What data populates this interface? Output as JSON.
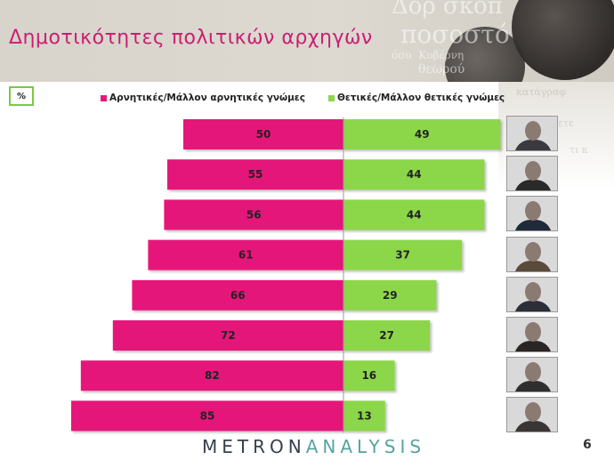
{
  "header": {
    "title": "Δημοτικότητες πολιτικών αρχηγών"
  },
  "unit_label": "%",
  "colors": {
    "negative": "#e5197a",
    "positive": "#8cd64a",
    "title": "#cc1e72"
  },
  "chart_data": {
    "type": "bar",
    "orientation": "horizontal-diverging",
    "series": [
      {
        "name": "Αρνητικές/Μάλλον αρνητικές γνώμες",
        "values": [
          50,
          55,
          56,
          61,
          66,
          72,
          82,
          85
        ]
      },
      {
        "name": "Θετικές/Μάλλον θετικές γνώμες",
        "values": [
          49,
          44,
          44,
          37,
          29,
          27,
          16,
          13
        ]
      }
    ],
    "legend_position": "top",
    "xlim": [
      0,
      100
    ],
    "grid": false
  },
  "footer": {
    "brand_main": "METRON",
    "brand_accent": "ANALYSIS",
    "page_number": "6"
  }
}
